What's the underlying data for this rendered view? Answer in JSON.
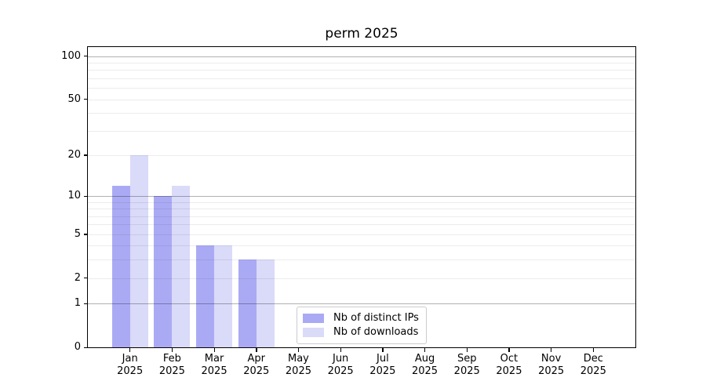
{
  "chart_data": {
    "type": "bar",
    "title": "perm 2025",
    "categories": [
      "Jan",
      "Feb",
      "Mar",
      "Apr",
      "May",
      "Jun",
      "Jul",
      "Aug",
      "Sep",
      "Oct",
      "Nov",
      "Dec"
    ],
    "x_year": "2025",
    "series": [
      {
        "name": "Nb of distinct IPs",
        "color": "#aaaaf4",
        "values": [
          12,
          10,
          4,
          3,
          0,
          0,
          0,
          0,
          0,
          0,
          0,
          0
        ]
      },
      {
        "name": "Nb of downloads",
        "color": "#dadaf9",
        "values": [
          20,
          12,
          4,
          3,
          0,
          0,
          0,
          0,
          0,
          0,
          0,
          0
        ]
      }
    ],
    "yscale": "log1p",
    "ylim": [
      0,
      116
    ],
    "y_ticks": [
      0,
      1,
      2,
      5,
      10,
      20,
      50,
      100
    ],
    "y_major_gridlines": [
      1,
      10,
      100
    ],
    "y_minor_gridlines": [
      2,
      3,
      4,
      5,
      6,
      7,
      8,
      9,
      20,
      30,
      40,
      50,
      60,
      70,
      80,
      90
    ],
    "grid": "horizontal",
    "legend_position": "lower-center"
  },
  "colors": {
    "background": "#ffffff",
    "axis": "#000000",
    "grid_major": "#b0b0b0",
    "grid_minor": "#ececec",
    "legend_border": "#cccccc"
  }
}
